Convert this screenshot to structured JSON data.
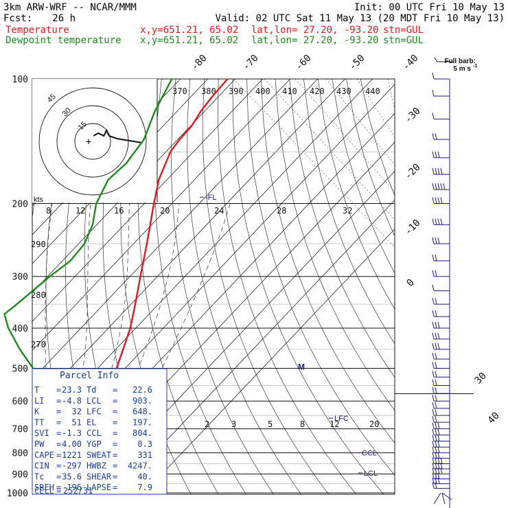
{
  "header": {
    "model": "3km ARW-WRF -- NCAR/MMM",
    "init": "Init: 00 UTC Fri 10 May 13",
    "fcst_label": "Fcst:",
    "fcst_hours": "26 h",
    "valid": "Valid: 02 UTC Sat 11 May 13 (20 MDT Fri 10 May 13)",
    "line1_name": "Temperature",
    "line2_name": "Dewpoint temperature",
    "xy": "x,y=651.21, 65.02",
    "latlon": "lat,lon= 27.20, -93.20",
    "stn": "stn=GUL",
    "colors": {
      "temperature": "#e8141e",
      "dewpoint": "#1a8c1a",
      "diagram": "#1a1a7a",
      "box": "#1a3aa0"
    }
  },
  "barb_legend": {
    "title": "Full barb:",
    "value": "5 m s",
    "exponent": "-1"
  },
  "hodograph": {
    "units": "kts",
    "rings": [
      "15",
      "30",
      "45"
    ],
    "center_mark": "+"
  },
  "parcel_info": {
    "title": "Parcel Info",
    "rows": [
      [
        {
          "k": "T",
          "v": "23.3"
        },
        {
          "k": "Td",
          "v": "22.6"
        }
      ],
      [
        {
          "k": "LI",
          "v": "-4.8"
        },
        {
          "k": "LCL",
          "v": "903."
        }
      ],
      [
        {
          "k": "K",
          "v": "32"
        },
        {
          "k": "LFC",
          "v": "648."
        }
      ],
      [
        {
          "k": "TT",
          "v": "51"
        },
        {
          "k": "EL",
          "v": "197."
        }
      ],
      [
        {
          "k": "SVI",
          "v": "-1.3"
        },
        {
          "k": "CCL",
          "v": "804."
        }
      ],
      [
        {
          "k": "PW",
          "v": "4.00"
        },
        {
          "k": "YGP",
          "v": "0.3"
        }
      ],
      [
        {
          "k": "CAPE",
          "v": "1221"
        },
        {
          "k": "SWEAT",
          "v": "331"
        }
      ],
      [
        {
          "k": "CIN",
          "v": "-297"
        },
        {
          "k": "HWBZ",
          "v": "4247."
        }
      ],
      [
        {
          "k": "Tc",
          "v": "35.6"
        },
        {
          "k": "SHEAR",
          "v": "40."
        }
      ],
      [
        {
          "k": "SREH",
          "v": "196"
        },
        {
          "k": "LAPSE",
          "v": "7.9"
        }
      ]
    ],
    "cell_label": "CELL",
    "cell_value": "252/31"
  },
  "chart_data": {
    "type": "line",
    "subtype": "skew-T log-p",
    "ylabel": "",
    "xlabel": "",
    "y_scale": "log",
    "ylim": [
      1000,
      100
    ],
    "pressure_levels": [
      1000,
      900,
      800,
      700,
      600,
      500,
      400,
      300,
      200,
      100
    ],
    "isotherm_labels": [
      "-80",
      "-70",
      "-60",
      "-50",
      "-40",
      "-30",
      "-20",
      "-10",
      "0",
      "30",
      "40"
    ],
    "theta_labels": [
      "370",
      "380",
      "390",
      "400",
      "410",
      "420",
      "430",
      "440"
    ],
    "mixing_ratio_labels": [
      "2",
      "3",
      "5",
      "8",
      "12",
      "20"
    ],
    "upper_scale_labels": [
      "8",
      "12",
      "16",
      "20",
      "24",
      "28",
      "32"
    ],
    "theta_left_labels": [
      "290",
      "280",
      "270"
    ],
    "annotations": [
      {
        "text": "-FL",
        "p": 193
      },
      {
        "text": "LFC",
        "p": 660
      },
      {
        "text": "CCL",
        "p": 800
      },
      {
        "text": "LCL",
        "p": 895
      },
      {
        "text": "M",
        "p": 500
      }
    ],
    "series": [
      {
        "name": "Temperature",
        "points": [
          {
            "p": 1000,
            "t": 25.0
          },
          {
            "p": 975,
            "t": 24.7
          },
          {
            "p": 950,
            "t": 25.5
          },
          {
            "p": 925,
            "t": 24.3
          },
          {
            "p": 900,
            "t": 22.1
          },
          {
            "p": 850,
            "t": 18.7
          },
          {
            "p": 800,
            "t": 15.8
          },
          {
            "p": 750,
            "t": 13.9
          },
          {
            "p": 700,
            "t": 11.4
          },
          {
            "p": 650,
            "t": 7.3
          },
          {
            "p": 600,
            "t": 3.9
          },
          {
            "p": 550,
            "t": 0.9
          },
          {
            "p": 500,
            "t": -3.1
          },
          {
            "p": 450,
            "t": -7.3
          },
          {
            "p": 400,
            "t": -12.0
          },
          {
            "p": 350,
            "t": -18.5
          },
          {
            "p": 300,
            "t": -26.2
          },
          {
            "p": 250,
            "t": -35.2
          },
          {
            "p": 200,
            "t": -46.5
          },
          {
            "p": 175,
            "t": -53.0
          },
          {
            "p": 150,
            "t": -58.4
          },
          {
            "p": 140,
            "t": -59.3
          },
          {
            "p": 130,
            "t": -59.6
          },
          {
            "p": 120,
            "t": -61.3
          },
          {
            "p": 110,
            "t": -62.3
          },
          {
            "p": 100,
            "t": -62.8
          }
        ]
      },
      {
        "name": "Dewpoint temperature",
        "points": [
          {
            "p": 1000,
            "t": 24.5
          },
          {
            "p": 975,
            "t": 21.8
          },
          {
            "p": 950,
            "t": 18.6
          },
          {
            "p": 925,
            "t": 16.5
          },
          {
            "p": 900,
            "t": 14.6
          },
          {
            "p": 850,
            "t": 11.5
          },
          {
            "p": 800,
            "t": 9.9
          },
          {
            "p": 750,
            "t": 9.0
          },
          {
            "p": 725,
            "t": 8.3
          },
          {
            "p": 700,
            "t": 4.5
          },
          {
            "p": 650,
            "t": -1.5
          },
          {
            "p": 600,
            "t": -9.7
          },
          {
            "p": 550,
            "t": -21.1
          },
          {
            "p": 500,
            "t": -33.5
          },
          {
            "p": 450,
            "t": -44.9
          },
          {
            "p": 400,
            "t": -56.4
          },
          {
            "p": 370,
            "t": -62.7
          },
          {
            "p": 350,
            "t": -61.6
          },
          {
            "p": 300,
            "t": -59.2
          },
          {
            "p": 275,
            "t": -57.1
          },
          {
            "p": 250,
            "t": -57.9
          },
          {
            "p": 225,
            "t": -61.5
          },
          {
            "p": 200,
            "t": -67.5
          },
          {
            "p": 175,
            "t": -71.4
          },
          {
            "p": 160,
            "t": -70.5
          },
          {
            "p": 140,
            "t": -72.3
          },
          {
            "p": 120,
            "t": -78.0
          },
          {
            "p": 100,
            "t": -83.1
          }
        ]
      }
    ],
    "hodograph_path_kts": [
      [
        0.5,
        3.3
      ],
      [
        3.3,
        4.9
      ],
      [
        6.6,
        3.3
      ],
      [
        8.2,
        6.6
      ],
      [
        9.8,
        3.3
      ],
      [
        14.8,
        1.6
      ],
      [
        24.6,
        0.0
      ],
      [
        29.6,
        -0.8
      ]
    ],
    "wind_barbs": [
      {
        "p": 1000,
        "barbs": "calm"
      },
      {
        "p": 975,
        "barbs": "bb"
      },
      {
        "p": 950,
        "barbs": "bbb"
      },
      {
        "p": 925,
        "barbs": "bbb"
      },
      {
        "p": 900,
        "barbs": "bbbb"
      },
      {
        "p": 875,
        "barbs": "bbbb"
      },
      {
        "p": 850,
        "barbs": "bbbb"
      },
      {
        "p": 825,
        "barbs": "bbb"
      },
      {
        "p": 800,
        "barbs": "bbb"
      },
      {
        "p": 775,
        "barbs": "bbb"
      },
      {
        "p": 750,
        "barbs": "bbb"
      },
      {
        "p": 725,
        "barbs": "bbb"
      },
      {
        "p": 700,
        "barbs": "bbb"
      },
      {
        "p": 675,
        "barbs": "bb"
      },
      {
        "p": 650,
        "barbs": "bb"
      },
      {
        "p": 625,
        "barbs": "bb"
      },
      {
        "p": 600,
        "barbs": "bb"
      },
      {
        "p": 575,
        "barbs": "bb"
      },
      {
        "p": 550,
        "barbs": "bb"
      },
      {
        "p": 525,
        "barbs": "bb"
      },
      {
        "p": 500,
        "barbs": "bb"
      },
      {
        "p": 475,
        "barbs": "bb"
      },
      {
        "p": 450,
        "barbs": "bbb"
      },
      {
        "p": 425,
        "barbs": "bbb"
      },
      {
        "p": 400,
        "barbs": "bbb"
      },
      {
        "p": 375,
        "barbs": "bb"
      },
      {
        "p": 350,
        "barbs": "bb"
      },
      {
        "p": 325,
        "barbs": "b"
      },
      {
        "p": 300,
        "barbs": "bb"
      },
      {
        "p": 275,
        "barbs": "bb"
      },
      {
        "p": 250,
        "barbs": "bbb"
      },
      {
        "p": 225,
        "barbs": "bbbb"
      },
      {
        "p": 200,
        "barbs": "bbbb"
      },
      {
        "p": 185,
        "barbs": "bbbbb"
      },
      {
        "p": 170,
        "barbs": "bbbb"
      },
      {
        "p": 155,
        "barbs": "bbb"
      },
      {
        "p": 140,
        "barbs": "bb"
      },
      {
        "p": 125,
        "barbs": "b"
      },
      {
        "p": 110,
        "barbs": "b"
      },
      {
        "p": 100,
        "barbs": "b"
      }
    ]
  }
}
